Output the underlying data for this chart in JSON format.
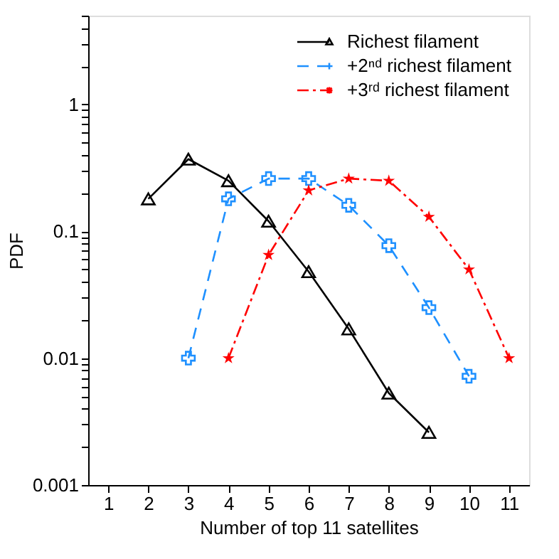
{
  "chart_data": {
    "type": "line",
    "xlabel": "Number of top 11 satellites",
    "ylabel": "PDF",
    "x": [
      2,
      3,
      4,
      5,
      6,
      7,
      8,
      9,
      10,
      11
    ],
    "series": [
      {
        "name": "Richest filament",
        "color": "#000000",
        "marker": "triangle",
        "line_style": "solid",
        "values": [
          0.18,
          0.37,
          0.25,
          0.12,
          0.048,
          0.017,
          0.0053,
          0.0026,
          null,
          null
        ]
      },
      {
        "name": "+2ⁿᵈ richest filament",
        "color": "#1e90ff",
        "marker": "cross",
        "line_style": "dashed",
        "values": [
          null,
          0.01,
          0.18,
          0.26,
          0.26,
          0.16,
          0.077,
          0.025,
          0.0072,
          null
        ]
      },
      {
        "name": "+3ʳᵈ richest filament",
        "color": "#ff0000",
        "marker": "star",
        "line_style": "dashdot",
        "values": [
          null,
          null,
          0.01,
          0.065,
          0.21,
          0.26,
          0.25,
          0.13,
          0.05,
          0.01
        ]
      }
    ],
    "xlim": [
      0.5,
      11.5
    ],
    "xticks": [
      1,
      2,
      3,
      4,
      5,
      6,
      7,
      8,
      9,
      10,
      11
    ],
    "ylim": [
      0.001,
      5
    ],
    "log": true,
    "yticks": [
      0.001,
      {
        "value": 0.002,
        "label": null
      },
      {
        "value": 0.003,
        "label": null
      },
      {
        "value": 0.004,
        "label": null
      },
      {
        "value": 0.005,
        "label": null
      },
      {
        "value": 0.006,
        "label": null
      },
      {
        "value": 0.007,
        "label": null
      },
      {
        "value": 0.008,
        "label": null
      },
      {
        "value": 0.009,
        "label": null
      },
      0.01,
      {
        "value": 0.02,
        "label": null
      },
      {
        "value": 0.03,
        "label": null
      },
      {
        "value": 0.04,
        "label": null
      },
      {
        "value": 0.05,
        "label": null
      },
      {
        "value": 0.06,
        "label": null
      },
      {
        "value": 0.07,
        "label": null
      },
      {
        "value": 0.08,
        "label": null
      },
      {
        "value": 0.09,
        "label": null
      },
      0.1,
      {
        "value": 0.2,
        "label": null
      },
      {
        "value": 0.3,
        "label": null
      },
      {
        "value": 0.4,
        "label": null
      },
      {
        "value": 0.5,
        "label": null
      },
      {
        "value": 0.6,
        "label": null
      },
      {
        "value": 0.7,
        "label": null
      },
      {
        "value": 0.8,
        "label": null
      },
      {
        "value": 0.9,
        "label": null
      },
      1,
      {
        "value": 2,
        "label": null
      },
      {
        "value": 3,
        "label": null
      },
      {
        "value": 4,
        "label": null
      },
      {
        "value": 5,
        "label": null
      }
    ],
    "grid": false,
    "legend": "top right"
  }
}
